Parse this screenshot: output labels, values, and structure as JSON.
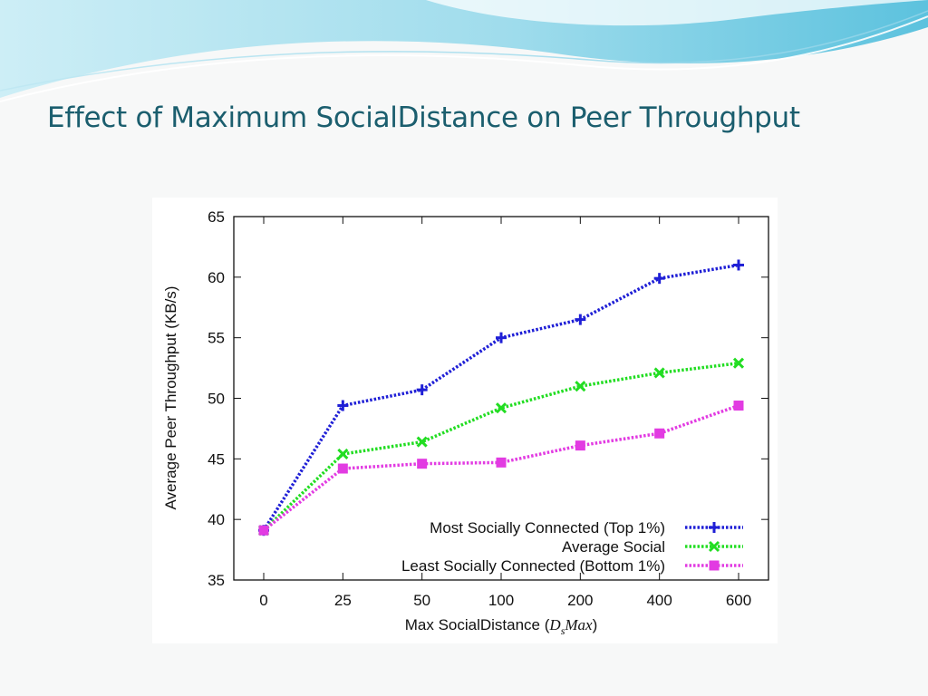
{
  "slide": {
    "title": "Effect of Maximum SocialDistance on Peer Throughput",
    "title_color": "#1b5e6e",
    "accent_color": "#5bc4dc"
  },
  "chart_data": {
    "type": "line",
    "categories": [
      "0",
      "25",
      "50",
      "100",
      "200",
      "400",
      "600"
    ],
    "xlabel": "Max SocialDistance (",
    "xlabel_math_base": "D",
    "xlabel_math_sub": "s",
    "xlabel_math_rest": "Max",
    "xlabel_close": ")",
    "ylabel": "Average Peer Throughput (KB/s)",
    "ylim": [
      35,
      65
    ],
    "yticks": [
      35,
      40,
      45,
      50,
      55,
      60,
      65
    ],
    "grid": false,
    "legend_position": "bottom-right",
    "series": [
      {
        "name": "Most Socially Connected (Top 1%)",
        "color": "#1f1fd6",
        "marker": "plus",
        "values": [
          39.1,
          49.4,
          50.7,
          55.0,
          56.5,
          59.9,
          61.0
        ]
      },
      {
        "name": "Average Social",
        "color": "#22dd22",
        "marker": "cross",
        "values": [
          39.1,
          45.4,
          46.4,
          49.2,
          51.0,
          52.1,
          52.9
        ]
      },
      {
        "name": "Least Socially Connected (Bottom 1%)",
        "color": "#e23be2",
        "marker": "square",
        "values": [
          39.1,
          44.2,
          44.6,
          44.7,
          46.1,
          47.1,
          49.4
        ]
      }
    ]
  }
}
